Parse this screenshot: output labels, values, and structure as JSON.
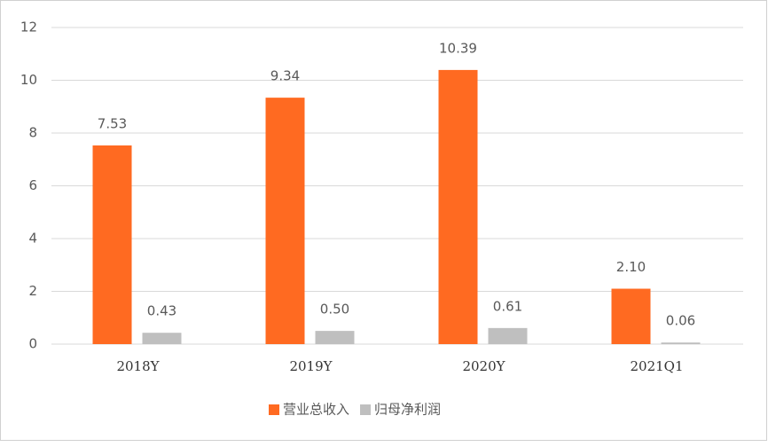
{
  "chart_data": {
    "type": "bar",
    "categories": [
      "2018Y",
      "2019Y",
      "2020Y",
      "2021Q1"
    ],
    "series": [
      {
        "name": "营业总收入",
        "color": "#ff6a21",
        "values": [
          7.53,
          9.34,
          10.39,
          2.1
        ],
        "value_labels": [
          "7.53",
          "9.34",
          "10.39",
          "2.10"
        ]
      },
      {
        "name": "归母净利润",
        "color": "#bfbfbf",
        "values": [
          0.43,
          0.5,
          0.61,
          0.06
        ],
        "value_labels": [
          "0.43",
          "0.50",
          "0.61",
          "0.06"
        ]
      }
    ],
    "ylim": [
      0,
      12
    ],
    "yticks": [
      0,
      2,
      4,
      6,
      8,
      10,
      12
    ],
    "grid": true,
    "legend": "bottom"
  }
}
